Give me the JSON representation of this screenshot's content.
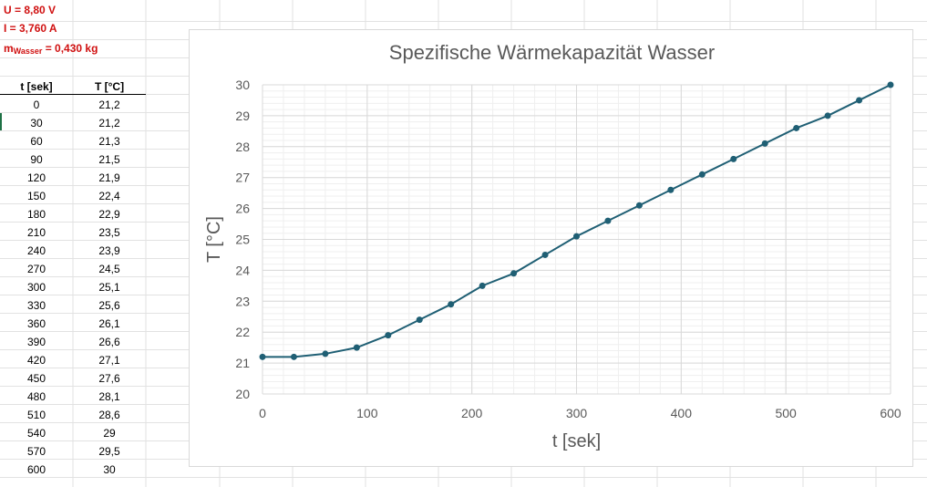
{
  "header": {
    "u_label": "U = 8,80 V",
    "i_label": "I = 3,760 A",
    "m_prefix": "m",
    "m_sub": "Wasser",
    "m_suffix": " = 0,430 kg"
  },
  "table": {
    "columns": [
      "t [sek]",
      "T [°C]"
    ],
    "rows": [
      [
        "0",
        "21,2"
      ],
      [
        "30",
        "21,2"
      ],
      [
        "60",
        "21,3"
      ],
      [
        "90",
        "21,5"
      ],
      [
        "120",
        "21,9"
      ],
      [
        "150",
        "22,4"
      ],
      [
        "180",
        "22,9"
      ],
      [
        "210",
        "23,5"
      ],
      [
        "240",
        "23,9"
      ],
      [
        "270",
        "24,5"
      ],
      [
        "300",
        "25,1"
      ],
      [
        "330",
        "25,6"
      ],
      [
        "360",
        "26,1"
      ],
      [
        "390",
        "26,6"
      ],
      [
        "420",
        "27,1"
      ],
      [
        "450",
        "27,6"
      ],
      [
        "480",
        "28,1"
      ],
      [
        "510",
        "28,6"
      ],
      [
        "540",
        "29"
      ],
      [
        "570",
        "29,5"
      ],
      [
        "600",
        "30"
      ]
    ]
  },
  "colors": {
    "series": "#1f5f74",
    "axis_text": "#595959",
    "grid": "#e3e3e3",
    "header_text": "#d01010"
  },
  "chart_data": {
    "type": "scatter",
    "title": "Spezifische Wärmekapazität Wasser",
    "xlabel": "t [sek]",
    "ylabel": "T [°C]",
    "xlim": [
      0,
      600
    ],
    "ylim": [
      20,
      30
    ],
    "x_ticks": [
      0,
      100,
      200,
      300,
      400,
      500,
      600
    ],
    "y_ticks": [
      20,
      21,
      22,
      23,
      24,
      25,
      26,
      27,
      28,
      29,
      30
    ],
    "grid": true,
    "minor_grid": true,
    "legend": "none",
    "series": [
      {
        "x": [
          0,
          30,
          60,
          90,
          120,
          150,
          180,
          210,
          240,
          270,
          300,
          330,
          360,
          390,
          420,
          450,
          480,
          510,
          540,
          570,
          600
        ],
        "y": [
          21.2,
          21.2,
          21.3,
          21.5,
          21.9,
          22.4,
          22.9,
          23.5,
          23.9,
          24.5,
          25.1,
          25.6,
          26.1,
          26.6,
          27.1,
          27.6,
          28.1,
          28.6,
          29,
          29.5,
          30
        ]
      }
    ]
  }
}
